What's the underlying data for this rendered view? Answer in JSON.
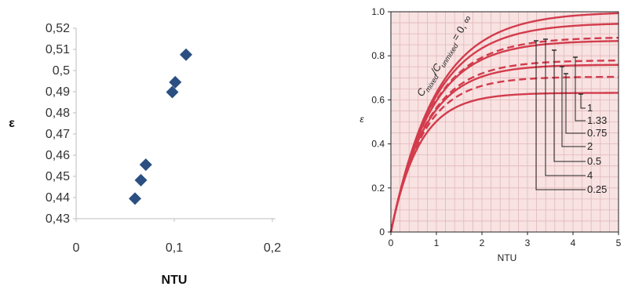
{
  "chart_data": [
    {
      "type": "scatter",
      "xlabel": "NTU",
      "ylabel": "ε",
      "xlim": [
        0,
        0.2
      ],
      "ylim": [
        0.43,
        0.52
      ],
      "xticks": [
        0,
        0.1,
        0.2
      ],
      "xtick_labels": [
        "0",
        "0,1",
        "0,2"
      ],
      "yticks": [
        0.43,
        0.44,
        0.45,
        0.46,
        0.47,
        0.48,
        0.49,
        0.5,
        0.51,
        0.52
      ],
      "ytick_labels": [
        "0,43",
        "0,44",
        "0,45",
        "0,46",
        "0,47",
        "0,48",
        "0,49",
        "0,5",
        "0,51",
        "0,52"
      ],
      "grid": false,
      "marker": "diamond",
      "color": "#2b4f81",
      "series": [
        {
          "x": [
            0.06,
            0.066,
            0.071,
            0.098,
            0.101,
            0.112
          ],
          "y": [
            0.4395,
            0.4482,
            0.4555,
            0.4898,
            0.4945,
            0.5075
          ]
        }
      ]
    },
    {
      "type": "line",
      "xlabel": "NTU",
      "ylabel": "ε",
      "xlim": [
        0,
        5
      ],
      "ylim": [
        0,
        1.0
      ],
      "xticks": [
        0,
        1,
        2,
        3,
        4,
        5
      ],
      "xtick_labels": [
        "0",
        "1",
        "2",
        "3",
        "4",
        "5"
      ],
      "yticks": [
        0,
        0.2,
        0.4,
        0.6,
        0.8,
        1.0
      ],
      "ytick_labels": [
        "0",
        "0.2",
        "0.4",
        "0.6",
        "0.8",
        "1.0"
      ],
      "grid": true,
      "grid_color": "#e3b8b8",
      "background": "#f8e2e2",
      "line_color": "#d23c4c",
      "curve_label": {
        "main": "C",
        "sub1": "mixed",
        "mid": "/C",
        "sub2": "unmixed",
        "tail": " = 0, ∞"
      },
      "annotation_labels": [
        "1",
        "1.33",
        "0.75",
        "2",
        "0.5",
        "4",
        "0.25"
      ],
      "series": [
        {
          "label": "0, ∞",
          "style": "solid",
          "limit": 1.0
        },
        {
          "label": "0.25",
          "style": "solid",
          "limit": 0.95
        },
        {
          "label": "4",
          "style": "dashed",
          "limit": 0.885
        },
        {
          "label": "0.5",
          "style": "solid",
          "limit": 0.87
        },
        {
          "label": "2",
          "style": "dashed",
          "limit": 0.78
        },
        {
          "label": "0.75",
          "style": "solid",
          "limit": 0.76
        },
        {
          "label": "1.33",
          "style": "dashed",
          "limit": 0.705
        },
        {
          "label": "1",
          "style": "solid",
          "limit": 0.632
        }
      ]
    }
  ]
}
